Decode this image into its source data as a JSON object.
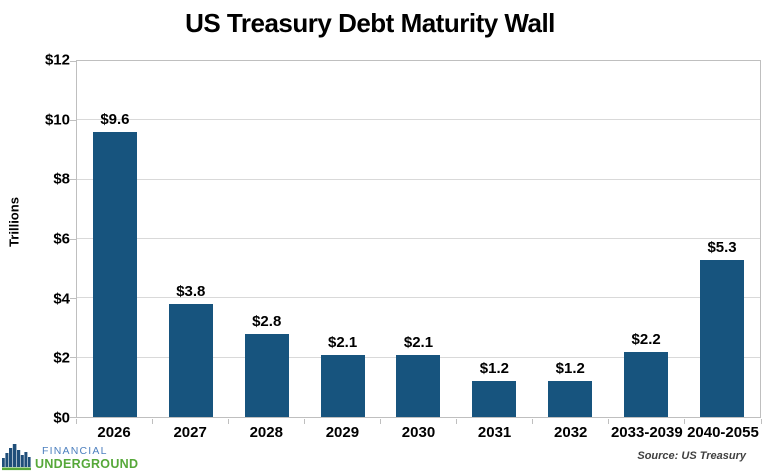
{
  "title": "US Treasury Debt Maturity Wall",
  "chart_data": {
    "type": "bar",
    "title": "US Treasury Debt Maturity Wall",
    "categories": [
      "2026",
      "2027",
      "2028",
      "2029",
      "2030",
      "2031",
      "2032",
      "2033-2039",
      "2040-2055"
    ],
    "values": [
      9.6,
      3.8,
      2.8,
      2.1,
      2.1,
      1.2,
      1.2,
      2.2,
      5.3
    ],
    "value_labels": [
      "$9.6",
      "$3.8",
      "$2.8",
      "$2.1",
      "$2.1",
      "$1.2",
      "$1.2",
      "$2.2",
      "$5.3"
    ],
    "xlabel": "",
    "ylabel": "Trillions",
    "ylim": [
      0,
      12
    ],
    "yticks": [
      0,
      2,
      4,
      6,
      8,
      10,
      12
    ],
    "ytick_labels": [
      "$0",
      "$2",
      "$4",
      "$6",
      "$8",
      "$10",
      "$12"
    ],
    "grid": true,
    "legend": false,
    "bar_color": "#17547E"
  },
  "colors": {
    "bar": "#17547E",
    "gridline": "#d9d9d9",
    "axis": "#bfbfbf",
    "logo_blue": "#4C7FBE",
    "logo_green": "#56A839",
    "logo_icon_blue": "#1F4E79"
  },
  "footer": {
    "logo": {
      "line1": "FINANCIAL",
      "line2": "UNDERGROUND"
    },
    "source": "Source: US Treasury"
  }
}
